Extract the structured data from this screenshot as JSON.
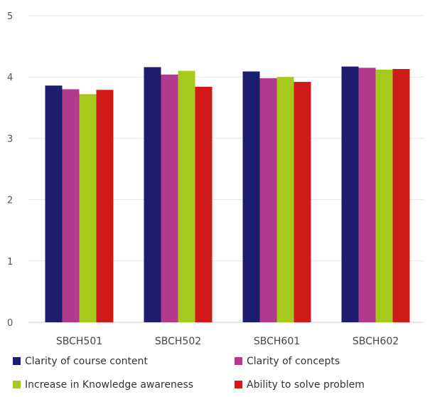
{
  "chart_data": {
    "type": "bar",
    "categories": [
      "SBCH501",
      "SBCH502",
      "SBCH601",
      "SBCH602"
    ],
    "series": [
      {
        "name": "Clarity of course content",
        "color": "#1c1d6e",
        "values": [
          3.86,
          4.16,
          4.09,
          4.17
        ]
      },
      {
        "name": "Clarity of concepts",
        "color": "#b23a8c",
        "values": [
          3.8,
          4.04,
          3.98,
          4.15
        ]
      },
      {
        "name": "Increase in Knowledge awareness",
        "color": "#a6c91e",
        "values": [
          3.72,
          4.1,
          4.0,
          4.12
        ]
      },
      {
        "name": "Ability to solve problem",
        "color": "#d01a1a",
        "values": [
          3.79,
          3.84,
          3.92,
          4.13
        ]
      }
    ],
    "yticks": [
      "0",
      "1",
      "2",
      "3",
      "4",
      "5"
    ],
    "ylim": [
      0,
      5
    ],
    "grid": true,
    "legend_position": "bottom"
  }
}
